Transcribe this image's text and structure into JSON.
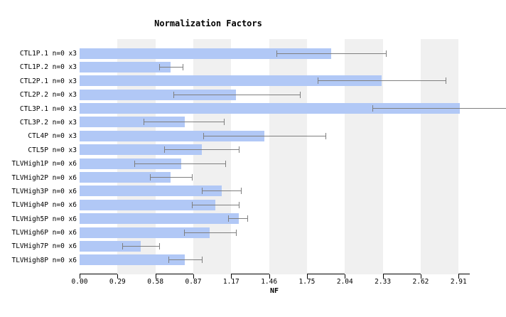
{
  "page": {
    "background": "#ffffff"
  },
  "chart_data": {
    "type": "bar",
    "orientation": "horizontal",
    "title": "Normalization Factors",
    "xlabel": "NF",
    "x_ticks": [
      "0.00",
      "0.29",
      "0.58",
      "0.87",
      "1.17",
      "1.46",
      "1.75",
      "2.04",
      "2.33",
      "2.62",
      "2.91"
    ],
    "xlim": [
      0,
      3.27
    ],
    "grid": "alternating-vertical-bands",
    "legend_position": "none",
    "categories": [
      "CTL1P.1 n=0 x3",
      "CTL1P.2 n=0 x3",
      "CTL2P.1 n=0 x3",
      "CTL2P.2 n=0 x3",
      "CTL3P.1 n=0 x3",
      "CTL3P.2 n=0 x3",
      "CTL4P n=0 x3",
      "CTL5P n=0 x3",
      "TLVHigh1P n=0 x6",
      "TLVHigh2P n=0 x6",
      "TLVHigh3P n=0 x6",
      "TLVHigh4P n=0 x6",
      "TLVHigh5P n=0 x6",
      "TLVHigh6P n=0 x6",
      "TLVHigh7P n=0 x6",
      "TLVHigh8P n=0 x6"
    ],
    "values": [
      1.93,
      0.7,
      2.32,
      1.2,
      2.92,
      0.81,
      1.42,
      0.94,
      0.78,
      0.7,
      1.09,
      1.04,
      1.22,
      1.0,
      0.47,
      0.81
    ],
    "error_low": [
      1.51,
      0.61,
      1.83,
      0.72,
      2.25,
      0.49,
      0.95,
      0.65,
      0.42,
      0.54,
      0.94,
      0.86,
      1.14,
      0.8,
      0.33,
      0.68
    ],
    "error_high": [
      2.35,
      0.79,
      2.81,
      1.69,
      3.3,
      1.11,
      1.89,
      1.22,
      1.12,
      0.86,
      1.24,
      1.22,
      1.29,
      1.2,
      0.61,
      0.94
    ],
    "error_high_clipped": [
      false,
      false,
      false,
      false,
      true,
      false,
      false,
      false,
      false,
      false,
      false,
      false,
      false,
      false,
      false,
      false
    ],
    "colors": {
      "bar": "#b1c8f6",
      "error": "#7f7f7f",
      "band": "#f0f0f0",
      "axis": "#000000",
      "text": "#000000",
      "background": "#ffffff"
    }
  }
}
